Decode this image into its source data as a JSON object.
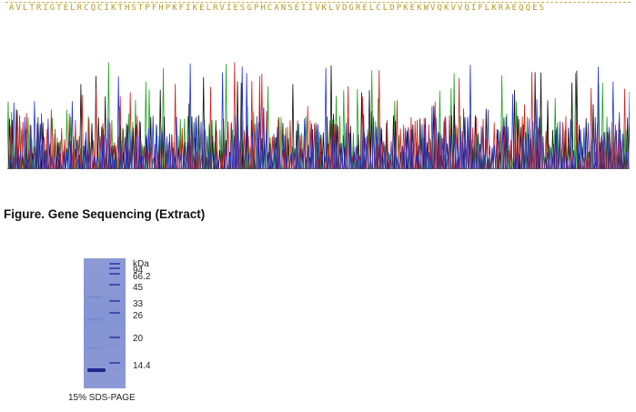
{
  "sequence": {
    "text": "AVLTRIGTELRCQCIKTHSTPFHPKFIKELRVIESGPHCANSEIIVKLVDGRELCLDPKEKWVQKVVQIFLKRAEQQES"
  },
  "chromatogram": {
    "colors": [
      "#1fa01f",
      "#111111",
      "#d22020",
      "#2233d0"
    ],
    "columns": 180
  },
  "figure_caption": "Figure. Gene Sequencing (Extract)",
  "gel": {
    "unit": "kDa",
    "markers": [
      "94",
      "66.2",
      "45",
      "33",
      "26",
      "20",
      "14.4"
    ],
    "caption": "15% SDS-PAGE"
  }
}
